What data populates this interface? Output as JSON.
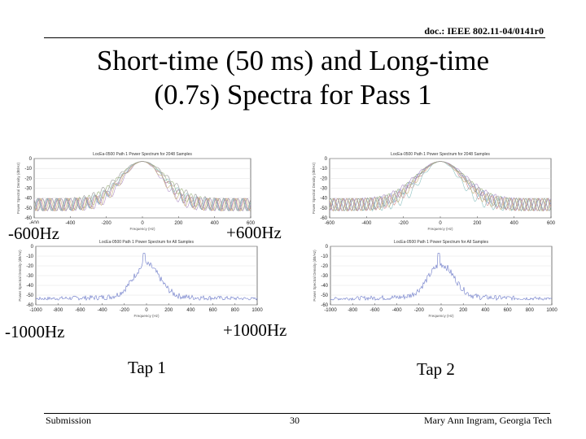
{
  "header": {
    "doc_id": "doc.: IEEE 802.11-04/0141r0"
  },
  "title": {
    "line1": "Short-time (50 ms) and Long-time",
    "line2": "(0.7s) Spectra for Pass 1"
  },
  "labels": {
    "minus600": "-600Hz",
    "plus600": "+600Hz",
    "minus1000": "-1000Hz",
    "plus1000": "+1000Hz",
    "tap1": "Tap 1",
    "tap2": "Tap 2"
  },
  "plots": [
    {
      "title": "LocEa-0500 Path 1 Power Spectrum for 2048 Samples",
      "ylabel": "Power Spectral Density (dB/Hz)",
      "xlabel": "Frequency (Hz)",
      "xticks": [
        "-600",
        "-400",
        "-200",
        "0",
        "200",
        "400",
        "600"
      ],
      "yticks": [
        "0",
        "-10",
        "-20",
        "-30",
        "-40",
        "-50",
        "-60"
      ]
    },
    {
      "title": "LocEa-0500 Path 1 Power Spectrum for 2048 Samples",
      "ylabel": "Power Spectral Density (dB/Hz)",
      "xlabel": "Frequency (Hz)",
      "xticks": [
        "-600",
        "-400",
        "-200",
        "0",
        "200",
        "400",
        "600"
      ],
      "yticks": [
        "0",
        "-10",
        "-20",
        "-30",
        "-40",
        "-50",
        "-60"
      ]
    },
    {
      "title": "LocEa-0500 Path 1 Power Spectrum for All Samples",
      "ylabel": "Power Spectral Density (dB/Hz)",
      "xlabel": "Frequency (Hz)",
      "xticks": [
        "-1000",
        "-800",
        "-600",
        "-400",
        "-200",
        "0",
        "200",
        "400",
        "600",
        "800",
        "1000"
      ],
      "yticks": [
        "0",
        "-10",
        "-20",
        "-30",
        "-40",
        "-50",
        "-60"
      ]
    },
    {
      "title": "LocEa-0500 Path 1 Power Spectrum for All Samples",
      "ylabel": "Power Spectral Density (dB/Hz)",
      "xlabel": "Frequency (Hz)",
      "xticks": [
        "-1000",
        "-800",
        "-600",
        "-400",
        "-200",
        "0",
        "200",
        "400",
        "600",
        "800",
        "1000"
      ],
      "yticks": [
        "0",
        "-10",
        "-20",
        "-30",
        "-40",
        "-50",
        "-60"
      ]
    }
  ],
  "footer": {
    "left": "Submission",
    "center": "30",
    "right": "Mary Ann Ingram, Georgia Tech"
  }
}
